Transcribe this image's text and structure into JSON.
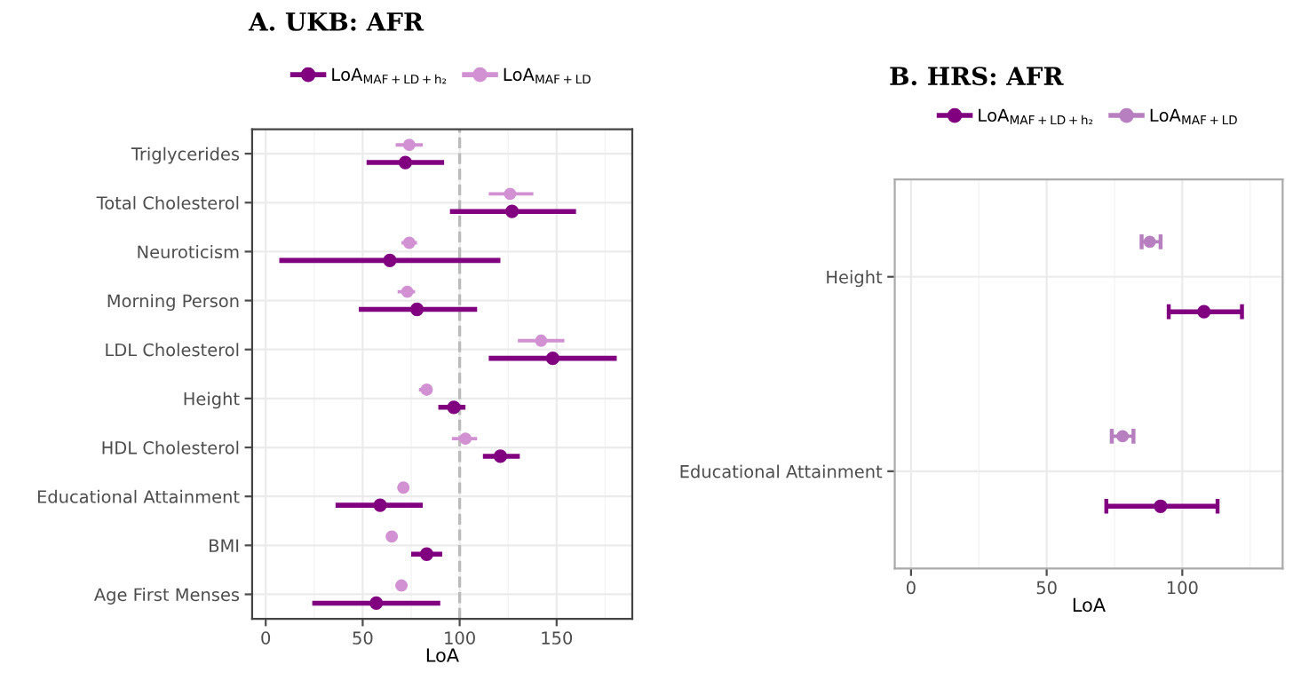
{
  "chart_data": [
    {
      "type": "scatter",
      "orientation": "horizontal",
      "title": "A. UKB: AFR",
      "xlabel": "LoA",
      "categories": [
        "Triglycerides",
        "Total Cholesterol",
        "Neuroticism",
        "Morning Person",
        "LDL Cholesterol",
        "Height",
        "HDL Cholesterol",
        "Educational Attainment",
        "BMI",
        "Age First Menses"
      ],
      "series": [
        {
          "name": "LoA$_{MAF+LD+h₂}$",
          "color": "#800080",
          "values": [
            72,
            127,
            64,
            78,
            148,
            97,
            121,
            59,
            83,
            57
          ],
          "errors": [
            [
              52,
              92
            ],
            [
              95,
              160
            ],
            [
              7,
              121
            ],
            [
              48,
              109
            ],
            [
              115,
              181
            ],
            [
              89,
              103
            ],
            [
              112,
              131
            ],
            [
              36,
              81
            ],
            [
              75,
              91
            ],
            [
              24,
              90
            ]
          ]
        },
        {
          "name": "LoA$_{MAF+LD}$",
          "color": "#d291d2",
          "values": [
            74,
            126,
            74,
            73,
            142,
            83,
            103,
            71,
            65,
            70
          ],
          "errors": [
            [
              67,
              81
            ],
            [
              115,
              138
            ],
            [
              70,
              78
            ],
            [
              68,
              77
            ],
            [
              130,
              154
            ],
            [
              79,
              86
            ],
            [
              96,
              109
            ],
            [
              68,
              74
            ],
            [
              63,
              67
            ],
            [
              67,
              73
            ]
          ]
        }
      ],
      "xlim": [
        -7,
        189
      ],
      "xticks": [
        0,
        50,
        100,
        150
      ],
      "grid": true,
      "legend": "top",
      "marker": "circle",
      "ref_lines": [
        {
          "axis": "x",
          "value": 100,
          "color": "#bbbbbb",
          "line_style": "dashed"
        }
      ]
    },
    {
      "type": "scatter",
      "orientation": "horizontal",
      "title": "B. HRS: AFR",
      "xlabel": "LoA",
      "categories": [
        "Height",
        "Educational Attainment"
      ],
      "series": [
        {
          "name": "LoA$_{MAF+LD+h₂}$",
          "color": "#800080",
          "values": [
            108,
            92
          ],
          "errors": [
            [
              95,
              122
            ],
            [
              72,
              113
            ]
          ]
        },
        {
          "name": "LoA$_{MAF+LD}$",
          "color": "#b77fc0",
          "values": [
            88,
            78
          ],
          "errors": [
            [
              85,
              92
            ],
            [
              74,
              82
            ]
          ]
        }
      ],
      "xlim": [
        -6,
        137
      ],
      "xticks": [
        0,
        50,
        100
      ],
      "grid": true,
      "legend": "top",
      "marker": "circle"
    }
  ]
}
